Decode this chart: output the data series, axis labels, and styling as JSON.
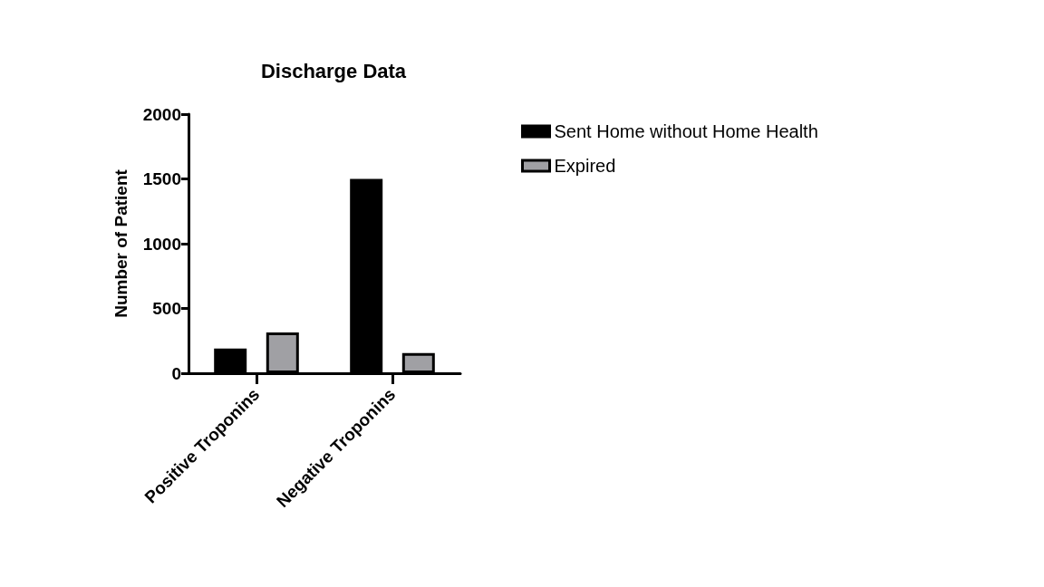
{
  "chart_data": {
    "type": "bar",
    "title": "Discharge Data",
    "ylabel": "Number of Patient",
    "categories": [
      "Positive Troponins",
      "Negative Troponins"
    ],
    "series": [
      {
        "name": "Sent Home without Home Health",
        "color": "#000000",
        "values": [
          190,
          1500
        ]
      },
      {
        "name": "Expired",
        "color": "#a0a0a4",
        "values": [
          315,
          155
        ]
      }
    ],
    "ylim": [
      0,
      2000
    ],
    "yticks": [
      0,
      500,
      1000,
      1500,
      2000
    ],
    "grid": false,
    "legend": "top right"
  }
}
